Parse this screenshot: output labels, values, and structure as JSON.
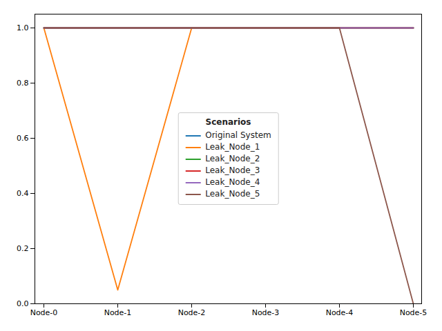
{
  "chart_data": {
    "type": "line",
    "categories": [
      "Node-0",
      "Node-1",
      "Node-2",
      "Node-3",
      "Node-4",
      "Node-5"
    ],
    "series": [
      {
        "name": "Original System",
        "color": "#1f77b4",
        "values": [
          1.0,
          1.0,
          1.0,
          1.0,
          1.0,
          1.0
        ]
      },
      {
        "name": "Leak_Node_1",
        "color": "#ff7f0e",
        "values": [
          1.0,
          0.05,
          1.0,
          1.0,
          1.0,
          1.0
        ]
      },
      {
        "name": "Leak_Node_2",
        "color": "#2ca02c",
        "values": [
          1.0,
          1.0,
          1.0,
          1.0,
          1.0,
          1.0
        ]
      },
      {
        "name": "Leak_Node_3",
        "color": "#d62728",
        "values": [
          1.0,
          1.0,
          1.0,
          1.0,
          1.0,
          1.0
        ]
      },
      {
        "name": "Leak_Node_4",
        "color": "#9467bd",
        "values": [
          1.0,
          1.0,
          1.0,
          1.0,
          1.0,
          1.0
        ]
      },
      {
        "name": "Leak_Node_5",
        "color": "#8c564b",
        "values": [
          1.0,
          1.0,
          1.0,
          1.0,
          1.0,
          0.0
        ]
      }
    ],
    "legend_title": "Scenarios",
    "legend": "center",
    "ylim": [
      0.0,
      1.05
    ],
    "yticks": [
      {
        "value": 0,
        "label": "0.0"
      },
      0.2,
      0.4,
      0.6,
      0.8,
      {
        "value": 1,
        "label": "1.0"
      }
    ],
    "grid": false
  }
}
